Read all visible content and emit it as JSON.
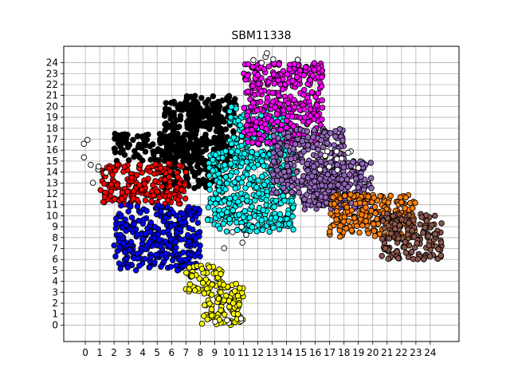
{
  "chart_data": {
    "type": "scatter",
    "title": "SBM11338",
    "xlabel": "",
    "ylabel": "",
    "xlim": [
      -1.5,
      26.0
    ],
    "ylim": [
      -1.5,
      25.5
    ],
    "xticks": [
      "0",
      "1",
      "2",
      "3",
      "4",
      "5",
      "6",
      "7",
      "8",
      "9",
      "10",
      "11",
      "12",
      "13",
      "14",
      "15",
      "16",
      "17",
      "18",
      "19",
      "20",
      "21",
      "22",
      "23",
      "24"
    ],
    "yticks": [
      "0",
      "1",
      "2",
      "3",
      "4",
      "5",
      "6",
      "7",
      "8",
      "9",
      "10",
      "11",
      "12",
      "13",
      "14",
      "15",
      "16",
      "17",
      "18",
      "19",
      "20",
      "21",
      "22",
      "23",
      "24"
    ],
    "grid": true,
    "legend": "none",
    "clusters": [
      {
        "color": "#000000",
        "regions": [
          [
            2.0,
            15.0,
            8.0,
            17.5
          ],
          [
            5.5,
            12.5,
            9.5,
            20.5
          ],
          [
            7.0,
            18.0,
            10.5,
            21.0
          ],
          [
            9.0,
            14.5,
            10.5,
            18.0
          ]
        ]
      },
      {
        "color": "#ff0000",
        "regions": [
          [
            1.0,
            11.0,
            7.0,
            14.8
          ]
        ]
      },
      {
        "color": "#0000ff",
        "regions": [
          [
            2.0,
            5.0,
            8.0,
            11.0
          ]
        ]
      },
      {
        "color": "#ffff00",
        "regions": [
          [
            7.0,
            3.0,
            9.5,
            5.5
          ],
          [
            8.0,
            0.0,
            11.0,
            3.8
          ]
        ]
      },
      {
        "color": "#00ffff",
        "regions": [
          [
            8.5,
            8.5,
            14.5,
            16.0
          ],
          [
            10.0,
            15.5,
            14.0,
            20.0
          ]
        ]
      },
      {
        "color": "#ff00ff",
        "regions": [
          [
            11.0,
            16.5,
            16.5,
            24.0
          ]
        ]
      },
      {
        "color": "#9467bd",
        "regions": [
          [
            13.0,
            12.0,
            18.0,
            18.0
          ],
          [
            15.0,
            10.5,
            20.0,
            15.0
          ]
        ]
      },
      {
        "color": "#ff7f0e",
        "regions": [
          [
            17.0,
            8.0,
            23.0,
            12.0
          ]
        ]
      },
      {
        "color": "#8c564b",
        "regions": [
          [
            20.5,
            6.0,
            24.8,
            10.2
          ]
        ]
      },
      {
        "color": "#ffffff",
        "regions": [
          [
            -0.2,
            13.0,
            1.5,
            17.0
          ],
          [
            9.5,
            7.0,
            11.5,
            9.0
          ],
          [
            16.0,
            13.5,
            19.0,
            16.5
          ],
          [
            11.5,
            23.5,
            15.0,
            25.0
          ],
          [
            7.5,
            0.0,
            11.5,
            1.0
          ]
        ]
      }
    ]
  }
}
